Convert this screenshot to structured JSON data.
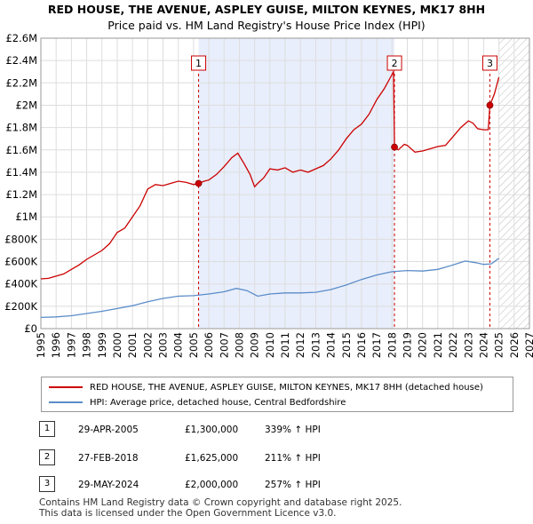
{
  "chart_data": {
    "type": "line",
    "title": "RED HOUSE, THE AVENUE, ASPLEY GUISE, MILTON KEYNES, MK17 8HH",
    "subtitle": "Price paid vs. HM Land Registry's House Price Index (HPI)",
    "xlim": [
      1995,
      2027
    ],
    "ylim": [
      0,
      2600000
    ],
    "x_ticks": [
      "1995",
      "1996",
      "1997",
      "1998",
      "1999",
      "2000",
      "2001",
      "2002",
      "2003",
      "2004",
      "2005",
      "2006",
      "2007",
      "2008",
      "2009",
      "2010",
      "2011",
      "2012",
      "2013",
      "2014",
      "2015",
      "2016",
      "2017",
      "2018",
      "2019",
      "2020",
      "2021",
      "2022",
      "2023",
      "2024",
      "2025",
      "2026",
      "2027"
    ],
    "y_ticks": [
      {
        "value": 0,
        "label": "£0"
      },
      {
        "value": 200000,
        "label": "£200K"
      },
      {
        "value": 400000,
        "label": "£400K"
      },
      {
        "value": 600000,
        "label": "£600K"
      },
      {
        "value": 800000,
        "label": "£800K"
      },
      {
        "value": 1000000,
        "label": "£1M"
      },
      {
        "value": 1200000,
        "label": "£1.2M"
      },
      {
        "value": 1400000,
        "label": "£1.4M"
      },
      {
        "value": 1600000,
        "label": "£1.6M"
      },
      {
        "value": 1800000,
        "label": "£1.8M"
      },
      {
        "value": 2000000,
        "label": "£2M"
      },
      {
        "value": 2200000,
        "label": "£2.2M"
      },
      {
        "value": 2400000,
        "label": "£2.4M"
      },
      {
        "value": 2600000,
        "label": "£2.6M"
      }
    ],
    "shaded_region": [
      2005.33,
      2018.16
    ],
    "future_hatch_start": 2025.0,
    "sale_markers": [
      {
        "label": "1",
        "x": 2005.33,
        "y": 1300000
      },
      {
        "label": "2",
        "x": 2018.16,
        "y": 1625000
      },
      {
        "label": "3",
        "x": 2024.41,
        "y": 2000000
      }
    ],
    "series": [
      {
        "name": "RED HOUSE, THE AVENUE, ASPLEY GUISE, MILTON KEYNES, MK17 8HH (detached house)",
        "color": "#cc0000",
        "x": [
          1995.0,
          1995.5,
          1996.0,
          1996.5,
          1997.0,
          1997.5,
          1998.0,
          1998.5,
          1999.0,
          1999.5,
          2000.0,
          2000.5,
          2001.0,
          2001.5,
          2002.0,
          2002.5,
          2003.0,
          2003.5,
          2004.0,
          2004.5,
          2005.0,
          2005.33,
          2005.7,
          2006.0,
          2006.5,
          2007.0,
          2007.5,
          2007.9,
          2008.3,
          2008.7,
          2009.0,
          2009.2,
          2009.6,
          2010.0,
          2010.5,
          2011.0,
          2011.5,
          2012.0,
          2012.5,
          2013.0,
          2013.5,
          2014.0,
          2014.5,
          2015.0,
          2015.5,
          2016.0,
          2016.5,
          2017.0,
          2017.5,
          2017.9,
          2018.1,
          2018.16,
          2018.4,
          2018.8,
          2019.0,
          2019.5,
          2020.0,
          2020.5,
          2021.0,
          2021.5,
          2022.0,
          2022.5,
          2023.0,
          2023.3,
          2023.6,
          2024.0,
          2024.3,
          2024.41,
          2024.7,
          2025.0
        ],
        "values": [
          445000,
          450000,
          470000,
          490000,
          530000,
          570000,
          620000,
          660000,
          700000,
          760000,
          860000,
          900000,
          1000000,
          1100000,
          1250000,
          1290000,
          1280000,
          1300000,
          1320000,
          1310000,
          1290000,
          1300000,
          1320000,
          1330000,
          1380000,
          1450000,
          1530000,
          1570000,
          1480000,
          1380000,
          1270000,
          1300000,
          1350000,
          1430000,
          1420000,
          1440000,
          1400000,
          1420000,
          1400000,
          1430000,
          1460000,
          1520000,
          1600000,
          1700000,
          1780000,
          1830000,
          1920000,
          2050000,
          2150000,
          2250000,
          2300000,
          1625000,
          1600000,
          1650000,
          1640000,
          1580000,
          1590000,
          1610000,
          1630000,
          1640000,
          1720000,
          1800000,
          1860000,
          1840000,
          1790000,
          1780000,
          1780000,
          2000000,
          2100000,
          2250000
        ]
      },
      {
        "name": "HPI: Average price, detached house, Central Bedfordshire",
        "color": "#5b8cc9",
        "x": [
          1995.0,
          1996.0,
          1997.0,
          1998.0,
          1999.0,
          2000.0,
          2001.0,
          2002.0,
          2003.0,
          2004.0,
          2005.0,
          2006.0,
          2007.0,
          2007.8,
          2008.5,
          2009.2,
          2010.0,
          2011.0,
          2012.0,
          2013.0,
          2014.0,
          2015.0,
          2016.0,
          2017.0,
          2018.0,
          2019.0,
          2020.0,
          2021.0,
          2022.0,
          2022.8,
          2023.5,
          2024.0,
          2024.5,
          2025.0
        ],
        "values": [
          100000,
          105000,
          115000,
          135000,
          155000,
          180000,
          205000,
          240000,
          270000,
          290000,
          295000,
          310000,
          330000,
          360000,
          340000,
          290000,
          310000,
          320000,
          320000,
          325000,
          350000,
          390000,
          440000,
          480000,
          510000,
          520000,
          515000,
          530000,
          570000,
          605000,
          590000,
          575000,
          580000,
          630000
        ]
      }
    ]
  },
  "legend": {
    "property_label": "RED HOUSE, THE AVENUE, ASPLEY GUISE, MILTON KEYNES, MK17 8HH (detached house)",
    "hpi_label": "HPI: Average price, detached house, Central Bedfordshire"
  },
  "sales": [
    {
      "num": "1",
      "date": "29-APR-2005",
      "price": "£1,300,000",
      "hpi": "339% ↑ HPI"
    },
    {
      "num": "2",
      "date": "27-FEB-2018",
      "price": "£1,625,000",
      "hpi": "211% ↑ HPI"
    },
    {
      "num": "3",
      "date": "29-MAY-2024",
      "price": "£2,000,000",
      "hpi": "257% ↑ HPI"
    }
  ],
  "footer": {
    "line1": "Contains HM Land Registry data © Crown copyright and database right 2025.",
    "line2": "This data is licensed under the Open Government Licence v3.0."
  }
}
